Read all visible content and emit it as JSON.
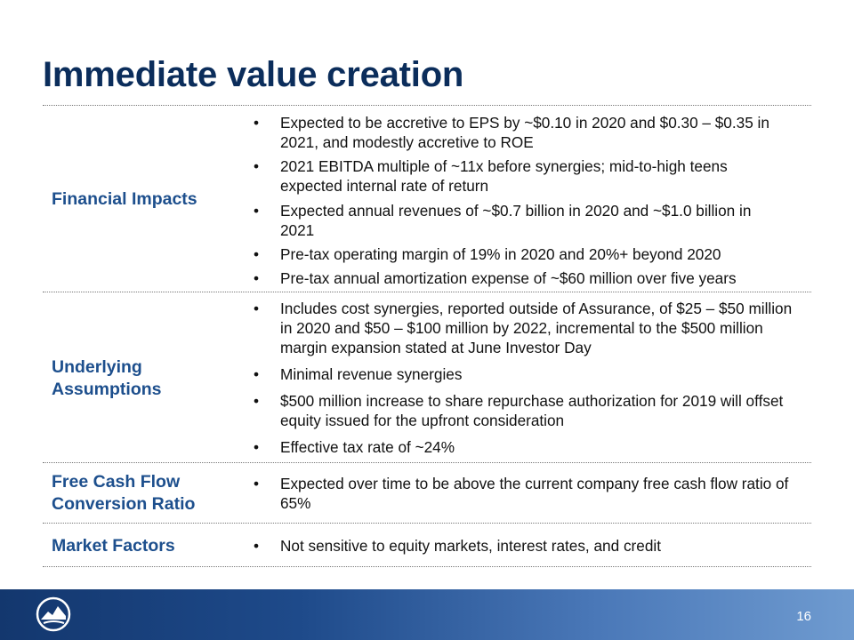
{
  "title": "Immediate value creation",
  "rows": [
    {
      "label": "Financial Impacts",
      "bullets": [
        "Expected to be accretive to EPS by ~$0.10 in 2020 and $0.30 – $0.35 in 2021, and modestly accretive to ROE",
        "2021 EBITDA multiple of ~11x before synergies; mid-to-high teens expected internal rate of return",
        "Expected annual revenues of ~$0.7 billion in 2020 and ~$1.0 billion in 2021",
        "Pre-tax operating margin of 19% in 2020 and 20%+ beyond 2020",
        "Pre-tax annual amortization expense of ~$60 million over five years"
      ]
    },
    {
      "label": "Underlying Assumptions",
      "bullets": [
        "Includes cost synergies, reported outside of Assurance, of $25 – $50 million in 2020 and $50 – $100 million by 2022, incremental to the $500 million margin expansion stated at June Investor Day",
        "Minimal revenue synergies",
        "$500 million increase to share repurchase authorization for 2019 will offset equity issued for the upfront consideration",
        "Effective tax rate of ~24%"
      ]
    },
    {
      "label": "Free Cash Flow Conversion Ratio",
      "bullets": [
        "Expected over time to be above the current company free cash flow ratio of 65%"
      ]
    },
    {
      "label": "Market Factors",
      "bullets": [
        "Not sensitive to equity markets, interest rates, and credit"
      ]
    }
  ],
  "footer": {
    "page_number": "16",
    "logo_icon": "rock-logo-icon"
  },
  "colors": {
    "title": "#0b2d5b",
    "label": "#1d4f8d",
    "footer": "#1e4a8a"
  }
}
